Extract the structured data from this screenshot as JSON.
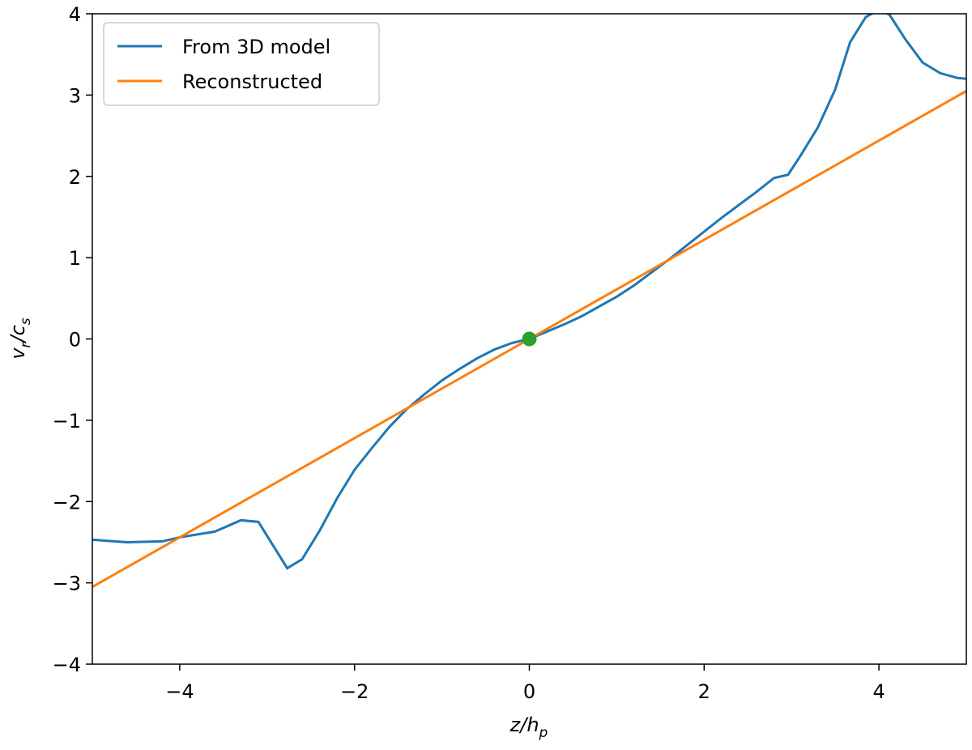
{
  "chart_data": {
    "type": "line",
    "xlabel": {
      "main": "z/h",
      "sub": "p"
    },
    "ylabel": {
      "main": "v",
      "sub": "r",
      "main2": "/c",
      "sub2": "s"
    },
    "xlim": [
      -5,
      5
    ],
    "ylim": [
      -4,
      4
    ],
    "xticks": [
      {
        "value": -4,
        "label": "−4"
      },
      {
        "value": -2,
        "label": "−2"
      },
      0,
      2,
      4
    ],
    "yticks": [
      {
        "value": -4,
        "label": "−4"
      },
      {
        "value": -3,
        "label": "−3"
      },
      {
        "value": -2,
        "label": "−2"
      },
      {
        "value": -1,
        "label": "−1"
      },
      0,
      1,
      2,
      3,
      4
    ],
    "legend": "upper left",
    "series": [
      {
        "name": "From 3D model",
        "color": "#1f77b4",
        "x": [
          -5,
          -4.6,
          -4.2,
          -4.0,
          -3.6,
          -3.3,
          -3.1,
          -2.77,
          -2.6,
          -2.4,
          -2.2,
          -2.0,
          -1.8,
          -1.6,
          -1.4,
          -1.2,
          -1.0,
          -0.8,
          -0.6,
          -0.4,
          -0.2,
          0,
          0.2,
          0.4,
          0.6,
          0.8,
          1.0,
          1.2,
          1.4,
          1.6,
          1.8,
          2.0,
          2.2,
          2.4,
          2.6,
          2.8,
          2.96,
          3.1,
          3.3,
          3.5,
          3.67,
          3.85,
          4.0,
          4.12,
          4.3,
          4.5,
          4.7,
          4.9,
          5.0
        ],
        "values": [
          -2.47,
          -2.5,
          -2.49,
          -2.44,
          -2.37,
          -2.23,
          -2.25,
          -2.82,
          -2.71,
          -2.36,
          -1.96,
          -1.61,
          -1.34,
          -1.08,
          -0.86,
          -0.68,
          -0.51,
          -0.37,
          -0.24,
          -0.13,
          -0.05,
          0.0,
          0.09,
          0.18,
          0.28,
          0.4,
          0.52,
          0.66,
          0.82,
          0.98,
          1.15,
          1.32,
          1.49,
          1.65,
          1.81,
          1.98,
          2.02,
          2.25,
          2.6,
          3.07,
          3.65,
          3.96,
          4.05,
          3.99,
          3.69,
          3.4,
          3.27,
          3.21,
          3.2
        ]
      },
      {
        "name": "Reconstructed",
        "color": "#ff7f0e",
        "x": [
          -5,
          5
        ],
        "values": [
          -3.05,
          3.05
        ]
      }
    ],
    "markers": {
      "color": "#2ca02c",
      "x": [
        0
      ],
      "values": [
        0
      ]
    }
  }
}
